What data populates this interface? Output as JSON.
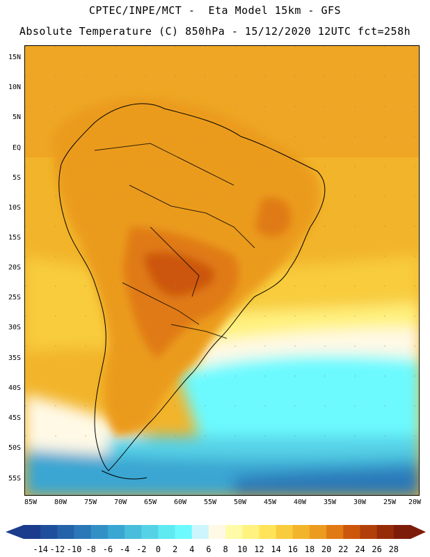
{
  "header": {
    "line1": "CPTEC/INPE/MCT -  Eta Model 15km - GFS",
    "line2": "Absolute Temperature (C) 850hPa - 15/12/2020 12UTC fct=258h"
  },
  "map": {
    "lat_labels": [
      "15N",
      "10N",
      "5N",
      "EQ",
      "5S",
      "10S",
      "15S",
      "20S",
      "25S",
      "30S",
      "35S",
      "40S",
      "45S",
      "50S",
      "55S"
    ],
    "lon_labels": [
      "85W",
      "80W",
      "75W",
      "70W",
      "65W",
      "60W",
      "55W",
      "50W",
      "45W",
      "40W",
      "35W",
      "30W",
      "25W",
      "20W"
    ]
  },
  "colorbar": {
    "labels": [
      "-14",
      "-12",
      "-10",
      "-8",
      "-6",
      "-4",
      "-2",
      "0",
      "2",
      "4",
      "6",
      "8",
      "10",
      "12",
      "14",
      "16",
      "18",
      "20",
      "22",
      "24",
      "26",
      "28"
    ],
    "colors": [
      "#1b3c8c",
      "#1f4f9c",
      "#2463aa",
      "#2b78b8",
      "#3290c6",
      "#3aa6d2",
      "#48bddc",
      "#56d2e6",
      "#5feaf2",
      "#6cfaff",
      "#cdf6fc",
      "#fff9e6",
      "#fffba6",
      "#fff27f",
      "#ffe45a",
      "#f8cc3e",
      "#f2b42a",
      "#eb9b1f",
      "#e07a14",
      "#cc560c",
      "#b23f0a",
      "#962b08",
      "#7d1c08"
    ]
  }
}
